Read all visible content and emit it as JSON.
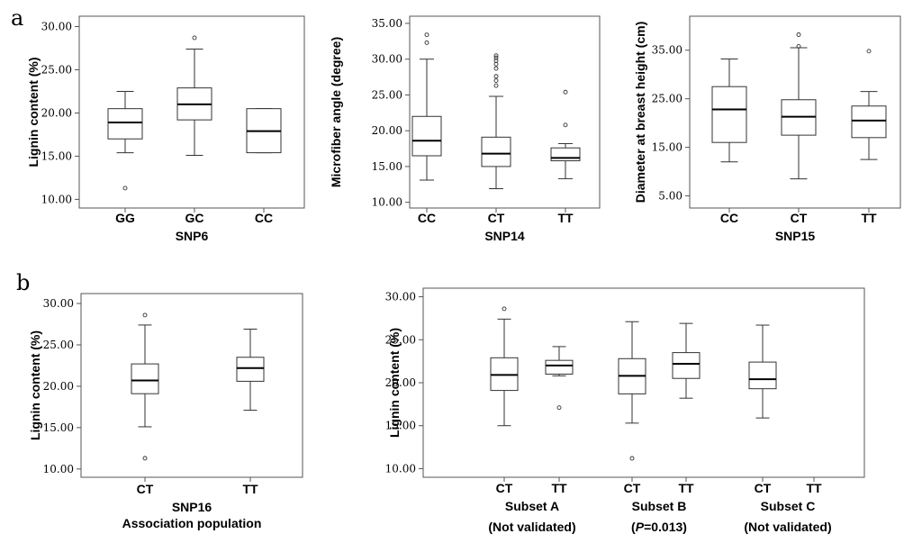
{
  "panel_letters": [
    "a",
    "b"
  ],
  "chart_data": [
    {
      "type": "box",
      "panel": "a",
      "xlabel": "SNP6",
      "ylabel": "Lignin content (%)",
      "ylim": [
        9.0,
        31.2
      ],
      "yticks": [
        "10.00",
        "15.00",
        "20.00",
        "25.00",
        "30.00"
      ],
      "categories": [
        "GG",
        "GC",
        "CC"
      ],
      "boxes": [
        {
          "min": 15.4,
          "q1": 17.0,
          "median": 18.9,
          "q3": 20.5,
          "max": 22.5,
          "outliers": [
            11.3
          ]
        },
        {
          "min": 15.1,
          "q1": 19.2,
          "median": 21.0,
          "q3": 22.9,
          "max": 27.4,
          "outliers": [
            28.7
          ]
        },
        {
          "min": 15.4,
          "q1": 15.4,
          "median": 17.9,
          "q3": 20.5,
          "max": 20.5,
          "outliers": []
        }
      ]
    },
    {
      "type": "box",
      "panel": "a",
      "xlabel": "SNP14",
      "ylabel": "Microfiber angle (degree)",
      "ylim": [
        9.2,
        36.0
      ],
      "yticks": [
        "10.00",
        "15.00",
        "20.00",
        "25.00",
        "30.00",
        "35.00"
      ],
      "categories": [
        "CC",
        "CT",
        "TT"
      ],
      "boxes": [
        {
          "min": 13.1,
          "q1": 16.5,
          "median": 18.6,
          "q3": 22.0,
          "max": 30.0,
          "outliers": [
            32.3,
            33.4
          ]
        },
        {
          "min": 11.9,
          "q1": 15.0,
          "median": 16.8,
          "q3": 19.1,
          "max": 24.8,
          "outliers": [
            26.3,
            27.0,
            27.6,
            28.7,
            29.3,
            29.8,
            30.2,
            30.5
          ]
        },
        {
          "min": 13.3,
          "q1": 15.8,
          "median": 16.2,
          "q3": 17.6,
          "max": 18.2,
          "outliers": [
            20.8,
            25.4
          ]
        }
      ]
    },
    {
      "type": "box",
      "panel": "a",
      "xlabel": "SNP15",
      "ylabel": "Diameter at breast height (cm)",
      "ylim": [
        2.5,
        42.0
      ],
      "yticks": [
        "5.00",
        "15.00",
        "25.00",
        "35.00"
      ],
      "categories": [
        "CC",
        "CT",
        "TT"
      ],
      "boxes": [
        {
          "min": 12.0,
          "q1": 16.0,
          "median": 22.8,
          "q3": 27.5,
          "max": 33.2,
          "outliers": []
        },
        {
          "min": 8.5,
          "q1": 17.5,
          "median": 21.3,
          "q3": 24.8,
          "max": 35.5,
          "outliers": [
            35.8,
            38.2
          ]
        },
        {
          "min": 12.5,
          "q1": 17.0,
          "median": 20.5,
          "q3": 23.5,
          "max": 26.5,
          "outliers": [
            34.8
          ]
        }
      ]
    },
    {
      "type": "box",
      "panel": "b",
      "xlabel": "SNP16",
      "xlabel2": "Association population",
      "ylabel": "Lignin content (%)",
      "ylim": [
        9.0,
        31.2
      ],
      "yticks": [
        "10.00",
        "15.00",
        "20.00",
        "25.00",
        "30.00"
      ],
      "categories": [
        "CT",
        "TT"
      ],
      "boxes": [
        {
          "min": 15.1,
          "q1": 19.1,
          "median": 20.7,
          "q3": 22.7,
          "max": 27.4,
          "outliers": [
            11.3,
            28.6
          ]
        },
        {
          "min": 17.1,
          "q1": 20.6,
          "median": 22.2,
          "q3": 23.5,
          "max": 26.9,
          "outliers": []
        }
      ]
    },
    {
      "type": "box",
      "panel": "b",
      "ylabel": "Lignin content (%)",
      "ylim": [
        9.0,
        31.0
      ],
      "yticks": [
        "10.00",
        "15.00",
        "20.00",
        "25.00",
        "30.00"
      ],
      "categories": [
        "CT",
        "TT",
        "CT",
        "TT",
        "CT",
        "TT"
      ],
      "group_labels": [
        {
          "name": "Subset A",
          "note": "(Not validated)"
        },
        {
          "name": "Subset B",
          "note_italic": "P",
          "note": "=0.013)",
          "note_prefix": "("
        },
        {
          "name": "Subset C",
          "note": "(Not validated)"
        }
      ],
      "boxes": [
        {
          "min": 15.0,
          "q1": 19.1,
          "median": 20.9,
          "q3": 22.9,
          "max": 27.4,
          "outliers": [
            28.6
          ]
        },
        {
          "min": 20.8,
          "q1": 21.0,
          "median": 22.0,
          "q3": 22.6,
          "max": 24.2,
          "outliers": [
            17.1
          ]
        },
        {
          "min": 15.3,
          "q1": 18.7,
          "median": 20.8,
          "q3": 22.8,
          "max": 27.1,
          "outliers": [
            11.2
          ]
        },
        {
          "min": 18.2,
          "q1": 20.5,
          "median": 22.2,
          "q3": 23.5,
          "max": 26.9,
          "outliers": []
        },
        {
          "min": 15.9,
          "q1": 19.3,
          "median": 20.4,
          "q3": 22.4,
          "max": 26.7,
          "outliers": []
        },
        null
      ]
    }
  ]
}
